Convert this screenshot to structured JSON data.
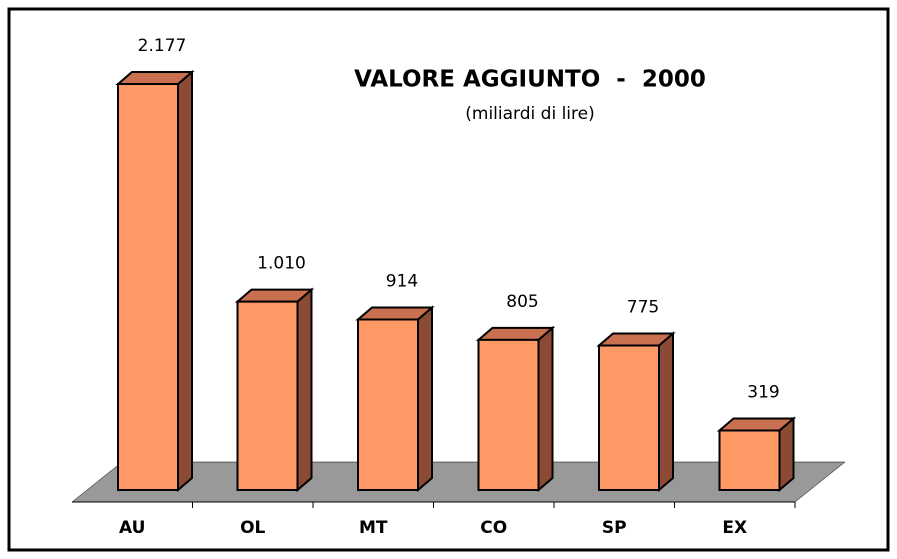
{
  "chart_data": {
    "type": "bar3d",
    "title": "VALORE AGGIUNTO  -  2000",
    "subtitle": "(miliardi di lire)",
    "categories": [
      "AU",
      "OL",
      "MT",
      "CO",
      "SP",
      "EX"
    ],
    "values": [
      2177,
      1010,
      914,
      805,
      775,
      319
    ],
    "value_labels": [
      "2.177",
      "1.010",
      "914",
      "805",
      "775",
      "319"
    ],
    "color": "#ff9966"
  }
}
